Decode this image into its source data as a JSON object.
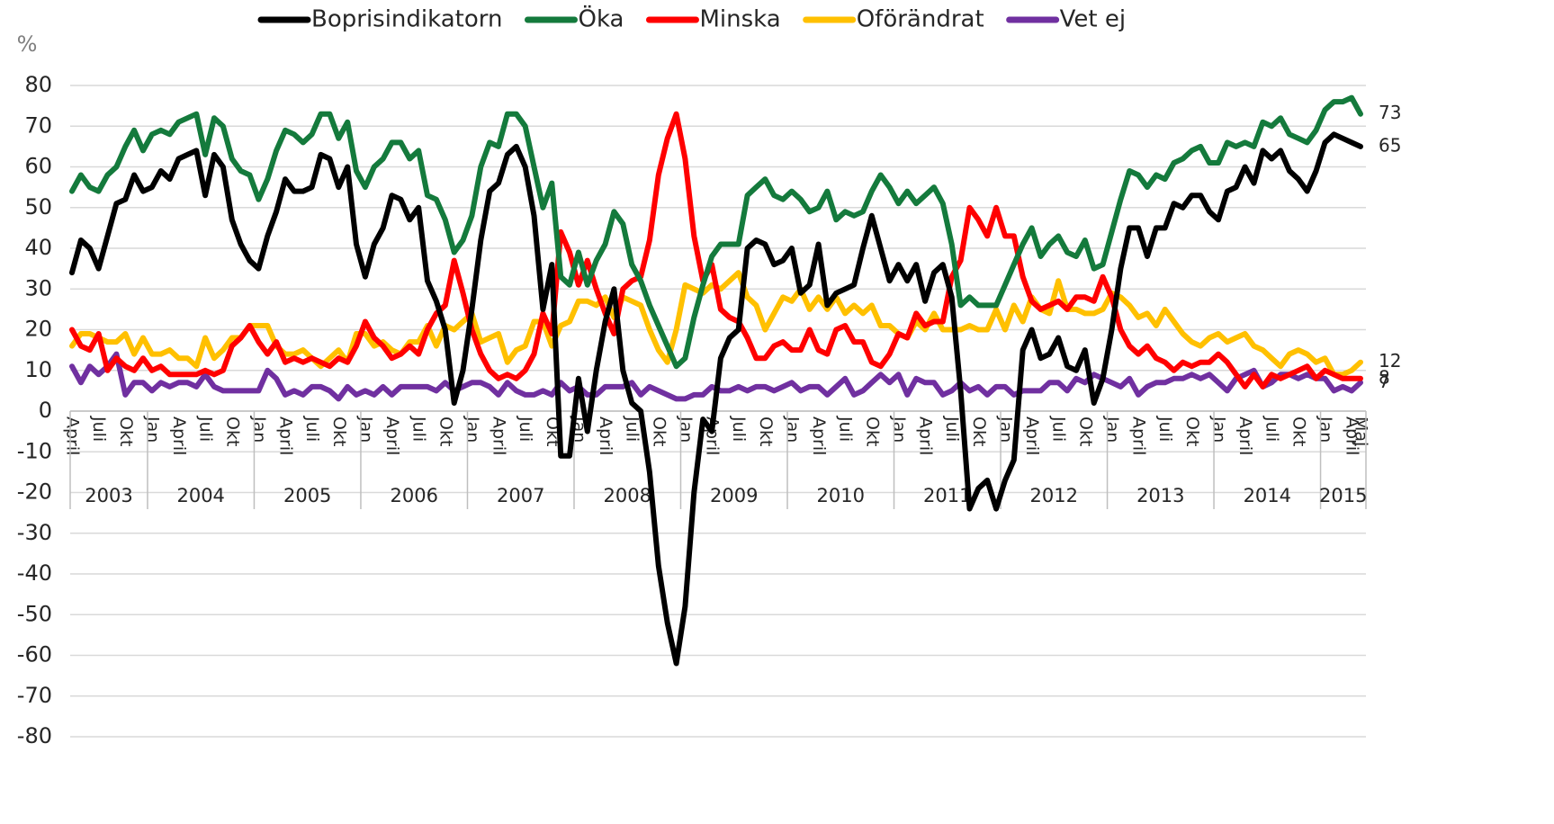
{
  "chart_data": {
    "type": "line",
    "y_label": "%",
    "ylim": [
      -80,
      80
    ],
    "yticks": [
      -80,
      -70,
      -60,
      -50,
      -40,
      -30,
      -20,
      -10,
      0,
      10,
      20,
      30,
      40,
      50,
      60,
      70,
      80
    ],
    "grid": true,
    "legend": "top",
    "years": [
      "2003",
      "2004",
      "2005",
      "2006",
      "2007",
      "2008",
      "2009",
      "2010",
      "2011",
      "2012",
      "2013",
      "2014",
      "2015"
    ],
    "categories": [
      "April",
      null,
      null,
      "Juli",
      null,
      null,
      "Okt",
      null,
      null,
      "Jan",
      null,
      null,
      "April",
      null,
      null,
      "Juli",
      null,
      null,
      "Okt",
      null,
      null,
      "Jan",
      null,
      null,
      "April",
      null,
      null,
      "Juli",
      null,
      null,
      "Okt",
      null,
      null,
      "Jan",
      null,
      null,
      "April",
      null,
      null,
      "Juli",
      null,
      null,
      "Okt",
      null,
      null,
      "Jan",
      null,
      null,
      "April",
      null,
      null,
      "Juli",
      null,
      null,
      "Okt",
      null,
      null,
      "Jan",
      null,
      null,
      "April",
      null,
      null,
      "Juli",
      null,
      null,
      "Okt",
      null,
      null,
      "Jan",
      null,
      null,
      "April",
      null,
      null,
      "Juli",
      null,
      null,
      "Okt",
      null,
      null,
      "Jan",
      null,
      null,
      "April",
      null,
      null,
      "Juli",
      null,
      null,
      "Okt",
      null,
      null,
      "Jan",
      null,
      null,
      "April",
      null,
      null,
      "Juli",
      null,
      null,
      "Okt",
      null,
      null,
      "Jan",
      null,
      null,
      "April",
      null,
      null,
      "Juli",
      null,
      null,
      "Okt",
      null,
      null,
      "Jan",
      null,
      null,
      "April",
      null,
      null,
      "Juli",
      null,
      null,
      "Okt",
      null,
      null,
      "Jan",
      null,
      null,
      "April",
      null,
      null,
      "Juli",
      null,
      null,
      "Okt",
      null,
      null,
      "Jan",
      null,
      null,
      "April",
      "Maj"
    ],
    "series": [
      {
        "name": "Boprisindikatorn",
        "color": "#000000",
        "values": [
          34,
          42,
          40,
          35,
          43,
          51,
          52,
          58,
          54,
          55,
          59,
          57,
          62,
          63,
          64,
          53,
          63,
          60,
          47,
          41,
          37,
          35,
          43,
          49,
          57,
          54,
          54,
          55,
          63,
          62,
          55,
          60,
          41,
          33,
          41,
          45,
          53,
          52,
          47,
          50,
          32,
          27,
          20,
          2,
          10,
          25,
          42,
          54,
          56,
          63,
          65,
          60,
          48,
          25,
          36,
          -11,
          -11,
          8,
          -5,
          10,
          22,
          30,
          10,
          2,
          0,
          -15,
          -38,
          -52,
          -62,
          -48,
          -20,
          -2,
          -5,
          13,
          18,
          20,
          40,
          42,
          41,
          36,
          37,
          40,
          29,
          31,
          41,
          26,
          29,
          30,
          31,
          40,
          48,
          40,
          32,
          36,
          32,
          36,
          27,
          34,
          36,
          28,
          5,
          -24,
          -19,
          -17,
          -24,
          -17,
          -12,
          15,
          20,
          13,
          14,
          18,
          11,
          10,
          15,
          2,
          8,
          20,
          35,
          45,
          45,
          38,
          45,
          45,
          51,
          50,
          53,
          53,
          49,
          47,
          54,
          55,
          60,
          56,
          64,
          62,
          64,
          59,
          57,
          54,
          59,
          66,
          68,
          67,
          66,
          65
        ]
      },
      {
        "name": "Öka",
        "color": "#147a3c",
        "values": [
          54,
          58,
          55,
          54,
          58,
          60,
          65,
          69,
          64,
          68,
          69,
          68,
          71,
          72,
          73,
          63,
          72,
          70,
          62,
          59,
          58,
          52,
          57,
          64,
          69,
          68,
          66,
          68,
          73,
          73,
          67,
          71,
          59,
          55,
          60,
          62,
          66,
          66,
          62,
          64,
          53,
          52,
          47,
          39,
          42,
          48,
          60,
          66,
          65,
          73,
          73,
          70,
          60,
          50,
          56,
          33,
          31,
          39,
          31,
          37,
          41,
          49,
          46,
          36,
          32,
          26,
          21,
          16,
          11,
          13,
          23,
          31,
          38,
          41,
          41,
          41,
          53,
          55,
          57,
          53,
          52,
          54,
          52,
          49,
          50,
          54,
          47,
          49,
          48,
          49,
          54,
          58,
          55,
          51,
          54,
          51,
          53,
          55,
          51,
          41,
          26,
          28,
          26,
          26,
          26,
          31,
          36,
          41,
          45,
          38,
          41,
          43,
          39,
          38,
          42,
          35,
          36,
          44,
          52,
          59,
          58,
          55,
          58,
          57,
          61,
          62,
          64,
          65,
          61,
          61,
          66,
          65,
          66,
          65,
          71,
          70,
          72,
          68,
          67,
          66,
          69,
          74,
          76,
          76,
          77,
          73
        ]
      },
      {
        "name": "Minska",
        "color": "#ff0000",
        "values": [
          20,
          16,
          15,
          19,
          10,
          13,
          11,
          10,
          13,
          10,
          11,
          9,
          9,
          9,
          9,
          10,
          9,
          10,
          16,
          18,
          21,
          17,
          14,
          17,
          12,
          13,
          12,
          13,
          12,
          11,
          13,
          12,
          16,
          22,
          18,
          16,
          13,
          14,
          16,
          14,
          20,
          24,
          26,
          37,
          29,
          20,
          14,
          10,
          8,
          9,
          8,
          10,
          14,
          24,
          19,
          44,
          39,
          31,
          37,
          30,
          24,
          19,
          30,
          32,
          33,
          42,
          58,
          67,
          73,
          62,
          43,
          32,
          36,
          25,
          23,
          22,
          18,
          13,
          13,
          16,
          17,
          15,
          15,
          20,
          15,
          14,
          20,
          21,
          17,
          17,
          12,
          11,
          14,
          19,
          18,
          24,
          21,
          22,
          22,
          33,
          37,
          50,
          47,
          43,
          50,
          43,
          43,
          33,
          27,
          25,
          26,
          27,
          25,
          28,
          28,
          27,
          33,
          28,
          20,
          16,
          14,
          16,
          13,
          12,
          10,
          12,
          11,
          12,
          12,
          14,
          12,
          9,
          6,
          9,
          6,
          9,
          8,
          9,
          10,
          11,
          8,
          10,
          9,
          8,
          8,
          8
        ]
      },
      {
        "name": "Oförändrat",
        "color": "#ffc000",
        "values": [
          16,
          19,
          19,
          18,
          17,
          17,
          19,
          14,
          18,
          14,
          14,
          15,
          13,
          13,
          11,
          18,
          13,
          15,
          18,
          18,
          21,
          21,
          21,
          16,
          14,
          14,
          15,
          13,
          11,
          13,
          15,
          12,
          19,
          19,
          16,
          17,
          15,
          14,
          17,
          17,
          21,
          16,
          21,
          20,
          22,
          24,
          17,
          18,
          19,
          12,
          15,
          16,
          22,
          22,
          16,
          21,
          22,
          27,
          27,
          26,
          28,
          23,
          28,
          27,
          26,
          20,
          15,
          12,
          20,
          31,
          30,
          29,
          31,
          30,
          32,
          34,
          28,
          26,
          20,
          24,
          28,
          27,
          30,
          25,
          28,
          25,
          28,
          24,
          26,
          24,
          26,
          21,
          21,
          19,
          18,
          22,
          20,
          24,
          20,
          20,
          20,
          21,
          20,
          20,
          25,
          20,
          26,
          22,
          28,
          25,
          24,
          32,
          25,
          25,
          24,
          24,
          25,
          29,
          28,
          26,
          23,
          24,
          21,
          25,
          22,
          19,
          17,
          16,
          18,
          19,
          17,
          18,
          19,
          16,
          15,
          13,
          11,
          14,
          15,
          14,
          12,
          13,
          9,
          9,
          10,
          12
        ]
      },
      {
        "name": "Vet ej",
        "color": "#7030a0",
        "values": [
          11,
          7,
          11,
          9,
          11,
          14,
          4,
          7,
          7,
          5,
          7,
          6,
          7,
          7,
          6,
          9,
          6,
          5,
          5,
          5,
          5,
          5,
          10,
          8,
          4,
          5,
          4,
          6,
          6,
          5,
          3,
          6,
          4,
          5,
          4,
          6,
          4,
          6,
          6,
          6,
          6,
          5,
          7,
          5,
          6,
          7,
          7,
          6,
          4,
          7,
          5,
          4,
          4,
          5,
          4,
          7,
          5,
          6,
          4,
          4,
          6,
          6,
          6,
          7,
          4,
          6,
          5,
          4,
          3,
          3,
          4,
          4,
          6,
          5,
          5,
          6,
          5,
          6,
          6,
          5,
          6,
          7,
          5,
          6,
          6,
          4,
          6,
          8,
          4,
          5,
          7,
          9,
          7,
          9,
          4,
          8,
          7,
          7,
          4,
          5,
          7,
          5,
          6,
          4,
          6,
          6,
          4,
          5,
          5,
          5,
          7,
          7,
          5,
          8,
          7,
          9,
          8,
          7,
          6,
          8,
          4,
          6,
          7,
          7,
          8,
          8,
          9,
          8,
          9,
          7,
          5,
          8,
          9,
          10,
          6,
          7,
          9,
          9,
          8,
          9,
          8,
          8,
          5,
          6,
          5,
          7
        ]
      }
    ]
  }
}
